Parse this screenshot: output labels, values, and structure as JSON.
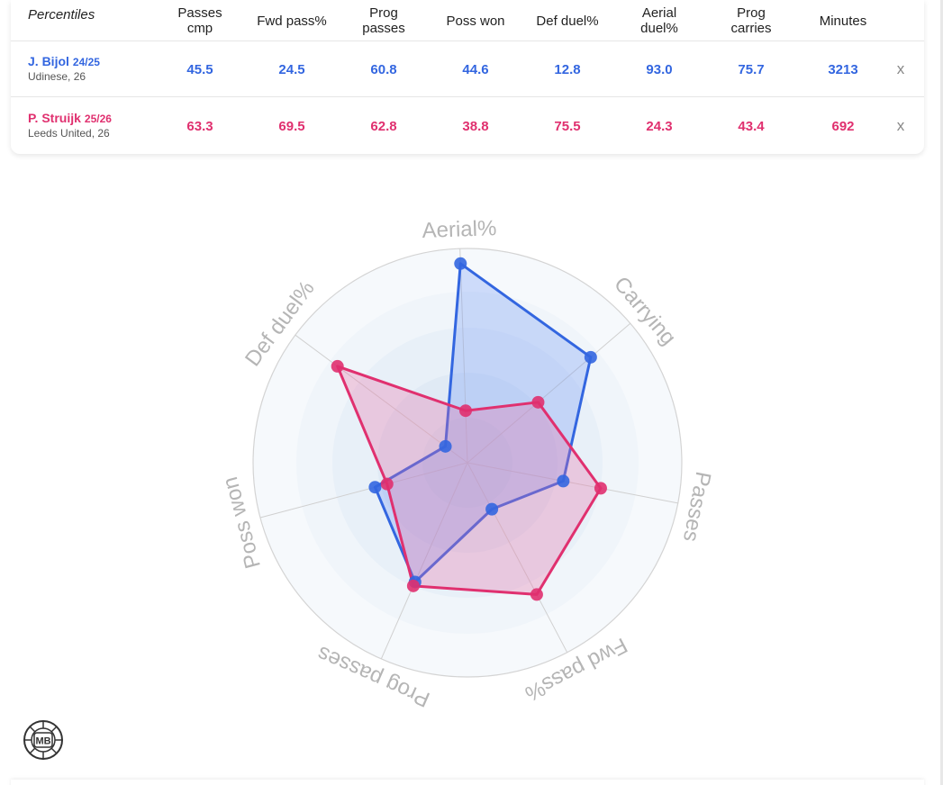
{
  "table": {
    "corner_label": "Percentiles",
    "columns": [
      "Passes\ncmp",
      "Fwd pass%",
      "Prog\npasses",
      "Poss won",
      "Def duel%",
      "Aerial\nduel%",
      "Prog\ncarries",
      "Minutes"
    ],
    "close_label": "x",
    "players": [
      {
        "name": "J. Bijol",
        "season": "24/25",
        "club": "Udinese, 26",
        "color": "#3366e0",
        "values": [
          "45.5",
          "24.5",
          "60.8",
          "44.6",
          "12.8",
          "93.0",
          "75.7",
          "3213"
        ]
      },
      {
        "name": "P. Struijk",
        "season": "25/26",
        "club": "Leeds United, 26",
        "color": "#e0306f",
        "values": [
          "63.3",
          "69.5",
          "62.8",
          "38.8",
          "75.5",
          "24.3",
          "43.4",
          "692"
        ]
      }
    ]
  },
  "chart_data": {
    "type": "radar",
    "axes": [
      "Aerial%",
      "Carrying",
      "Passes",
      "Fwd pass%",
      "Prog passes",
      "Poss won",
      "Def duel%"
    ],
    "range": [
      0,
      100
    ],
    "series": [
      {
        "name": "J. Bijol",
        "color": "#3366e0",
        "values": [
          93.0,
          75.7,
          45.5,
          24.5,
          60.8,
          44.6,
          12.8
        ]
      },
      {
        "name": "P. Struijk",
        "color": "#e0306f",
        "values": [
          24.3,
          43.4,
          63.3,
          69.5,
          62.8,
          38.8,
          75.5
        ]
      }
    ]
  },
  "logo": {
    "text": "MB"
  }
}
